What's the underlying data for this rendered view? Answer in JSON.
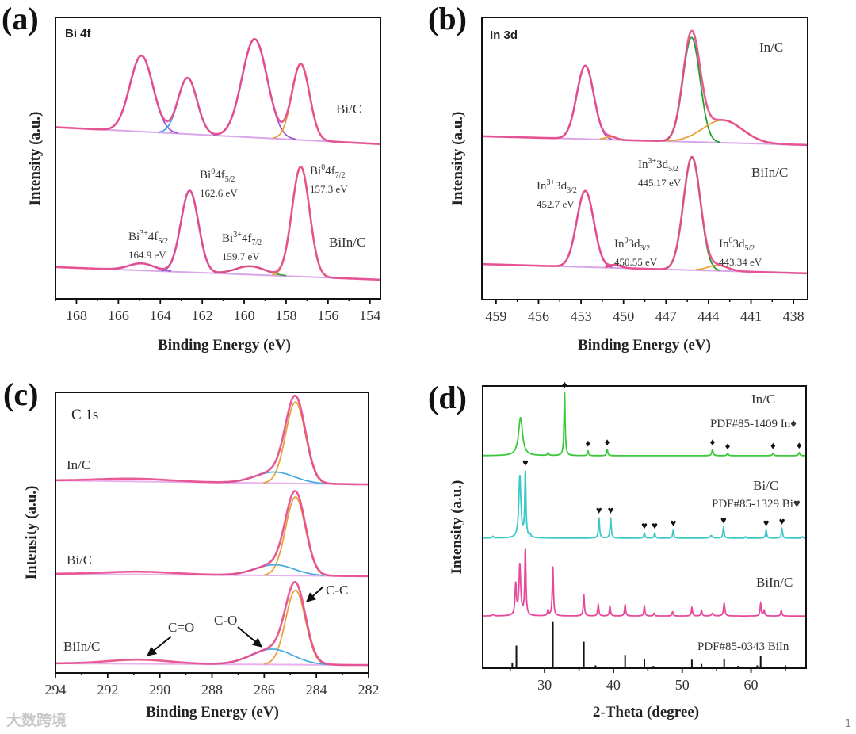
{
  "watermark": "大数跨境",
  "page_number": "1",
  "chart_data": [
    {
      "panel": "a",
      "letter": "(a)",
      "type": "line",
      "title": "Bi 4f",
      "xlabel": "Binding Energy (eV)",
      "ylabel": "Intensity (a.u.)",
      "xlim": [
        169,
        153.5
      ],
      "ylim": [
        0,
        100
      ],
      "xticks": [
        168,
        166,
        164,
        162,
        160,
        158,
        156,
        154
      ],
      "series": [
        {
          "name": "Bi/C",
          "baseline": [
            61,
            55
          ],
          "envelope_color": "#e6498c",
          "baseline_color": "#d9a6ea",
          "components": [
            {
              "center": 164.9,
              "amp": 27,
              "sigma": 0.55,
              "color": "#8f5bd6"
            },
            {
              "center": 162.7,
              "amp": 20,
              "sigma": 0.45,
              "color": "#4aa3e8"
            },
            {
              "center": 159.5,
              "amp": 35,
              "sigma": 0.6,
              "color": "#a05ad0"
            },
            {
              "center": 157.3,
              "amp": 27,
              "sigma": 0.42,
              "color": "#e8a23a"
            }
          ]
        },
        {
          "name": "BiIn/C",
          "baseline": [
            11.3,
            6.8
          ],
          "envelope_color": "#e6498c",
          "baseline_color": "#d9a6ea",
          "components": [
            {
              "center": 164.9,
              "amp": 2.5,
              "sigma": 0.6,
              "color": "#8f5bd6"
            },
            {
              "center": 162.6,
              "amp": 29,
              "sigma": 0.42,
              "color": "#6a5acd"
            },
            {
              "center": 159.7,
              "amp": 3,
              "sigma": 0.7,
              "color": "#3aa03a"
            },
            {
              "center": 157.3,
              "amp": 39,
              "sigma": 0.42,
              "color": "#e8a23a"
            }
          ]
        }
      ],
      "annotations": [
        {
          "species": "Bi",
          "charge": "3+",
          "orbital": "4f",
          "sub": "5/2",
          "energy": "164.9 eV"
        },
        {
          "species": "Bi",
          "charge": "0",
          "orbital": "4f",
          "sub": "5/2",
          "energy": "162.6 eV"
        },
        {
          "species": "Bi",
          "charge": "3+",
          "orbital": "4f",
          "sub": "7/2",
          "energy": "159.7 eV"
        },
        {
          "species": "Bi",
          "charge": "0",
          "orbital": "4f",
          "sub": "7/2",
          "energy": "157.3 eV"
        }
      ]
    },
    {
      "panel": "b",
      "letter": "(b)",
      "type": "line",
      "title": "In 3d",
      "xlabel": "Binding Energy (eV)",
      "ylabel": "Intensity (a.u.)",
      "xlim": [
        460,
        437
      ],
      "ylim": [
        0,
        100
      ],
      "xticks": [
        459,
        456,
        453,
        450,
        447,
        444,
        441,
        438
      ],
      "series": [
        {
          "name": "In/C",
          "baseline": [
            57.9,
            54.8
          ],
          "envelope_color": "#e6498c",
          "baseline_color": "#d9a6ea",
          "components": [
            {
              "center": 452.7,
              "amp": 26,
              "sigma": 0.6,
              "color": "#a05ad0"
            },
            {
              "center": 450.9,
              "amp": 1,
              "sigma": 0.4,
              "color": "#e8a23a"
            },
            {
              "center": 445.2,
              "amp": 37,
              "sigma": 0.6,
              "color": "#1fa02a"
            },
            {
              "center": 443.0,
              "amp": 8,
              "sigma": 1.4,
              "color": "#e8a23a"
            }
          ]
        },
        {
          "name": "BiIn/C",
          "baseline": [
            12.6,
            9.3
          ],
          "envelope_color": "#e6498c",
          "baseline_color": "#d9a6ea",
          "components": [
            {
              "center": 452.7,
              "amp": 27,
              "sigma": 0.6,
              "color": "#a05ad0"
            },
            {
              "center": 450.55,
              "amp": 1,
              "sigma": 0.4,
              "color": "#e84a4a"
            },
            {
              "center": 445.17,
              "amp": 40,
              "sigma": 0.6,
              "color": "#1fa02a"
            },
            {
              "center": 443.34,
              "amp": 2,
              "sigma": 0.7,
              "color": "#e8a23a"
            }
          ]
        }
      ],
      "annotations": [
        {
          "species": "In",
          "charge": "3+",
          "orbital": "3d",
          "sub": "3/2",
          "energy": "452.7 eV"
        },
        {
          "species": "In",
          "charge": "0",
          "orbital": "3d",
          "sub": "3/2",
          "energy": "450.55 eV"
        },
        {
          "species": "In",
          "charge": "3+",
          "orbital": "3d",
          "sub": "5/2",
          "energy": "445.17 eV"
        },
        {
          "species": "In",
          "charge": "0",
          "orbital": "3d",
          "sub": "5/2",
          "energy": "443.34 eV"
        }
      ]
    },
    {
      "panel": "c",
      "letter": "(c)",
      "type": "line",
      "title": "C 1s",
      "xlabel": "Binding Energy (eV)",
      "ylabel": "Intensity (a.u.)",
      "xlim": [
        294,
        282
      ],
      "ylim": [
        0,
        100
      ],
      "xticks": [
        294,
        292,
        290,
        288,
        286,
        284,
        282
      ],
      "series": [
        {
          "name": "In/C",
          "baseline": [
            68.6,
            67.2
          ],
          "envelope_color": "#e6498c",
          "baseline_color": "#e9b0ee",
          "components": [
            {
              "center": 284.8,
              "amp": 29,
              "sigma": 0.38,
              "color": "#e8a23a"
            },
            {
              "center": 285.6,
              "amp": 4,
              "sigma": 0.75,
              "color": "#4aaee0"
            },
            {
              "center": 291.0,
              "amp": 1,
              "sigma": 1.4,
              "color": null
            }
          ]
        },
        {
          "name": "Bi/C",
          "baseline": [
            35.3,
            34.5
          ],
          "envelope_color": "#e6498c",
          "baseline_color": "#e9b0ee",
          "components": [
            {
              "center": 284.8,
              "amp": 28,
              "sigma": 0.38,
              "color": "#e8a23a"
            },
            {
              "center": 285.6,
              "amp": 3.8,
              "sigma": 0.75,
              "color": "#4aaee0"
            },
            {
              "center": 290.8,
              "amp": 1,
              "sigma": 1.4,
              "color": null
            }
          ]
        },
        {
          "name": "BiIn/C",
          "baseline": [
            3.4,
            2.8
          ],
          "envelope_color": "#e6498c",
          "baseline_color": "#e9b0ee",
          "components": [
            {
              "center": 284.8,
              "amp": 26.5,
              "sigma": 0.38,
              "color": "#e8a23a"
            },
            {
              "center": 285.7,
              "amp": 5.5,
              "sigma": 0.8,
              "color": "#4aaee0"
            },
            {
              "center": 290.8,
              "amp": 1.5,
              "sigma": 1.2,
              "color": null
            }
          ]
        }
      ],
      "arrow_labels": {
        "cc": "C-C",
        "co": "C-O",
        "c_eq_o": "C=O"
      }
    },
    {
      "panel": "d",
      "letter": "(d)",
      "type": "line",
      "xlabel": "2-Theta (degree)",
      "ylabel": "Intensity (a.u.)",
      "xlim": [
        21,
        68
      ],
      "ylim": [
        0,
        100
      ],
      "xticks": [
        30,
        40,
        50,
        60
      ],
      "series": [
        {
          "name": "In/C",
          "reference": "PDF#85-1409 In♦",
          "marker": "♦",
          "color": "#3cc83c",
          "offset": 75.3,
          "peaks": [
            [
              26.5,
              13.5,
              0.35
            ],
            [
              30.5,
              1,
              0.12
            ],
            [
              32.9,
              22.5,
              0.1
            ],
            [
              36.3,
              1.7,
              0.1
            ],
            [
              39.1,
              2.2,
              0.1
            ],
            [
              54.4,
              2.2,
              0.12
            ],
            [
              56.6,
              0.8,
              0.12
            ],
            [
              63.2,
              0.9,
              0.12
            ],
            [
              67.0,
              1.1,
              0.12
            ]
          ],
          "markers": [
            32.9,
            36.3,
            39.1,
            54.4,
            56.6,
            63.2,
            67.0
          ]
        },
        {
          "name": "Bi/C",
          "reference": "PDF#85-1329 Bi♥",
          "marker": "♥",
          "color": "#3cc8c8",
          "offset": 46.1,
          "peaks": [
            [
              22.5,
              0.6,
              0.15
            ],
            [
              26.4,
              22,
              0.18
            ],
            [
              27.2,
              23,
              0.1
            ],
            [
              27.9,
              1,
              0.12
            ],
            [
              37.9,
              7.3,
              0.1
            ],
            [
              39.6,
              7.3,
              0.1
            ],
            [
              44.5,
              1.8,
              0.1
            ],
            [
              46.0,
              1.8,
              0.1
            ],
            [
              48.7,
              2.8,
              0.1
            ],
            [
              54.2,
              0.9,
              0.2
            ],
            [
              56.0,
              3.8,
              0.1
            ],
            [
              59.2,
              0.5,
              0.1
            ],
            [
              62.2,
              2.8,
              0.1
            ],
            [
              64.5,
              3.3,
              0.1
            ],
            [
              67.5,
              0.5,
              0.1
            ]
          ],
          "markers": [
            27.2,
            37.9,
            39.6,
            44.5,
            46.0,
            48.7,
            56.0,
            62.2,
            64.5
          ]
        },
        {
          "name": "BiIn/C",
          "color": "#e6499c",
          "offset": 18.5,
          "peaks": [
            [
              22.5,
              0.5,
              0.15
            ],
            [
              25.8,
              11,
              0.12
            ],
            [
              26.4,
              18,
              0.15
            ],
            [
              27.2,
              23.5,
              0.1
            ],
            [
              30.5,
              2,
              0.1
            ],
            [
              31.2,
              17.5,
              0.1
            ],
            [
              35.7,
              7.5,
              0.1
            ],
            [
              37.8,
              4,
              0.1
            ],
            [
              39.5,
              3.5,
              0.1
            ],
            [
              41.7,
              4,
              0.1
            ],
            [
              44.5,
              3.5,
              0.1
            ],
            [
              45.9,
              1,
              0.1
            ],
            [
              48.6,
              1.5,
              0.1
            ],
            [
              51.4,
              3,
              0.1
            ],
            [
              52.8,
              2,
              0.1
            ],
            [
              54.4,
              1,
              0.15
            ],
            [
              56.1,
              4.5,
              0.12
            ],
            [
              61.4,
              4.5,
              0.1
            ],
            [
              61.9,
              2,
              0.1
            ],
            [
              64.4,
              2,
              0.1
            ]
          ]
        }
      ],
      "reference_pattern": {
        "name": "PDF#85-0343 BiIn",
        "color": "#111111",
        "sticks": [
          [
            25.3,
            2
          ],
          [
            25.9,
            8
          ],
          [
            31.2,
            16.4
          ],
          [
            35.7,
            9.4
          ],
          [
            37.4,
            1
          ],
          [
            41.7,
            4.7
          ],
          [
            44.5,
            3.3
          ],
          [
            45.8,
            0.8
          ],
          [
            51.4,
            3
          ],
          [
            52.8,
            1.5
          ],
          [
            56.1,
            3.3
          ],
          [
            58.1,
            0.8
          ],
          [
            60.9,
            1
          ],
          [
            61.4,
            4.2
          ],
          [
            65.0,
            1
          ]
        ]
      }
    }
  ]
}
